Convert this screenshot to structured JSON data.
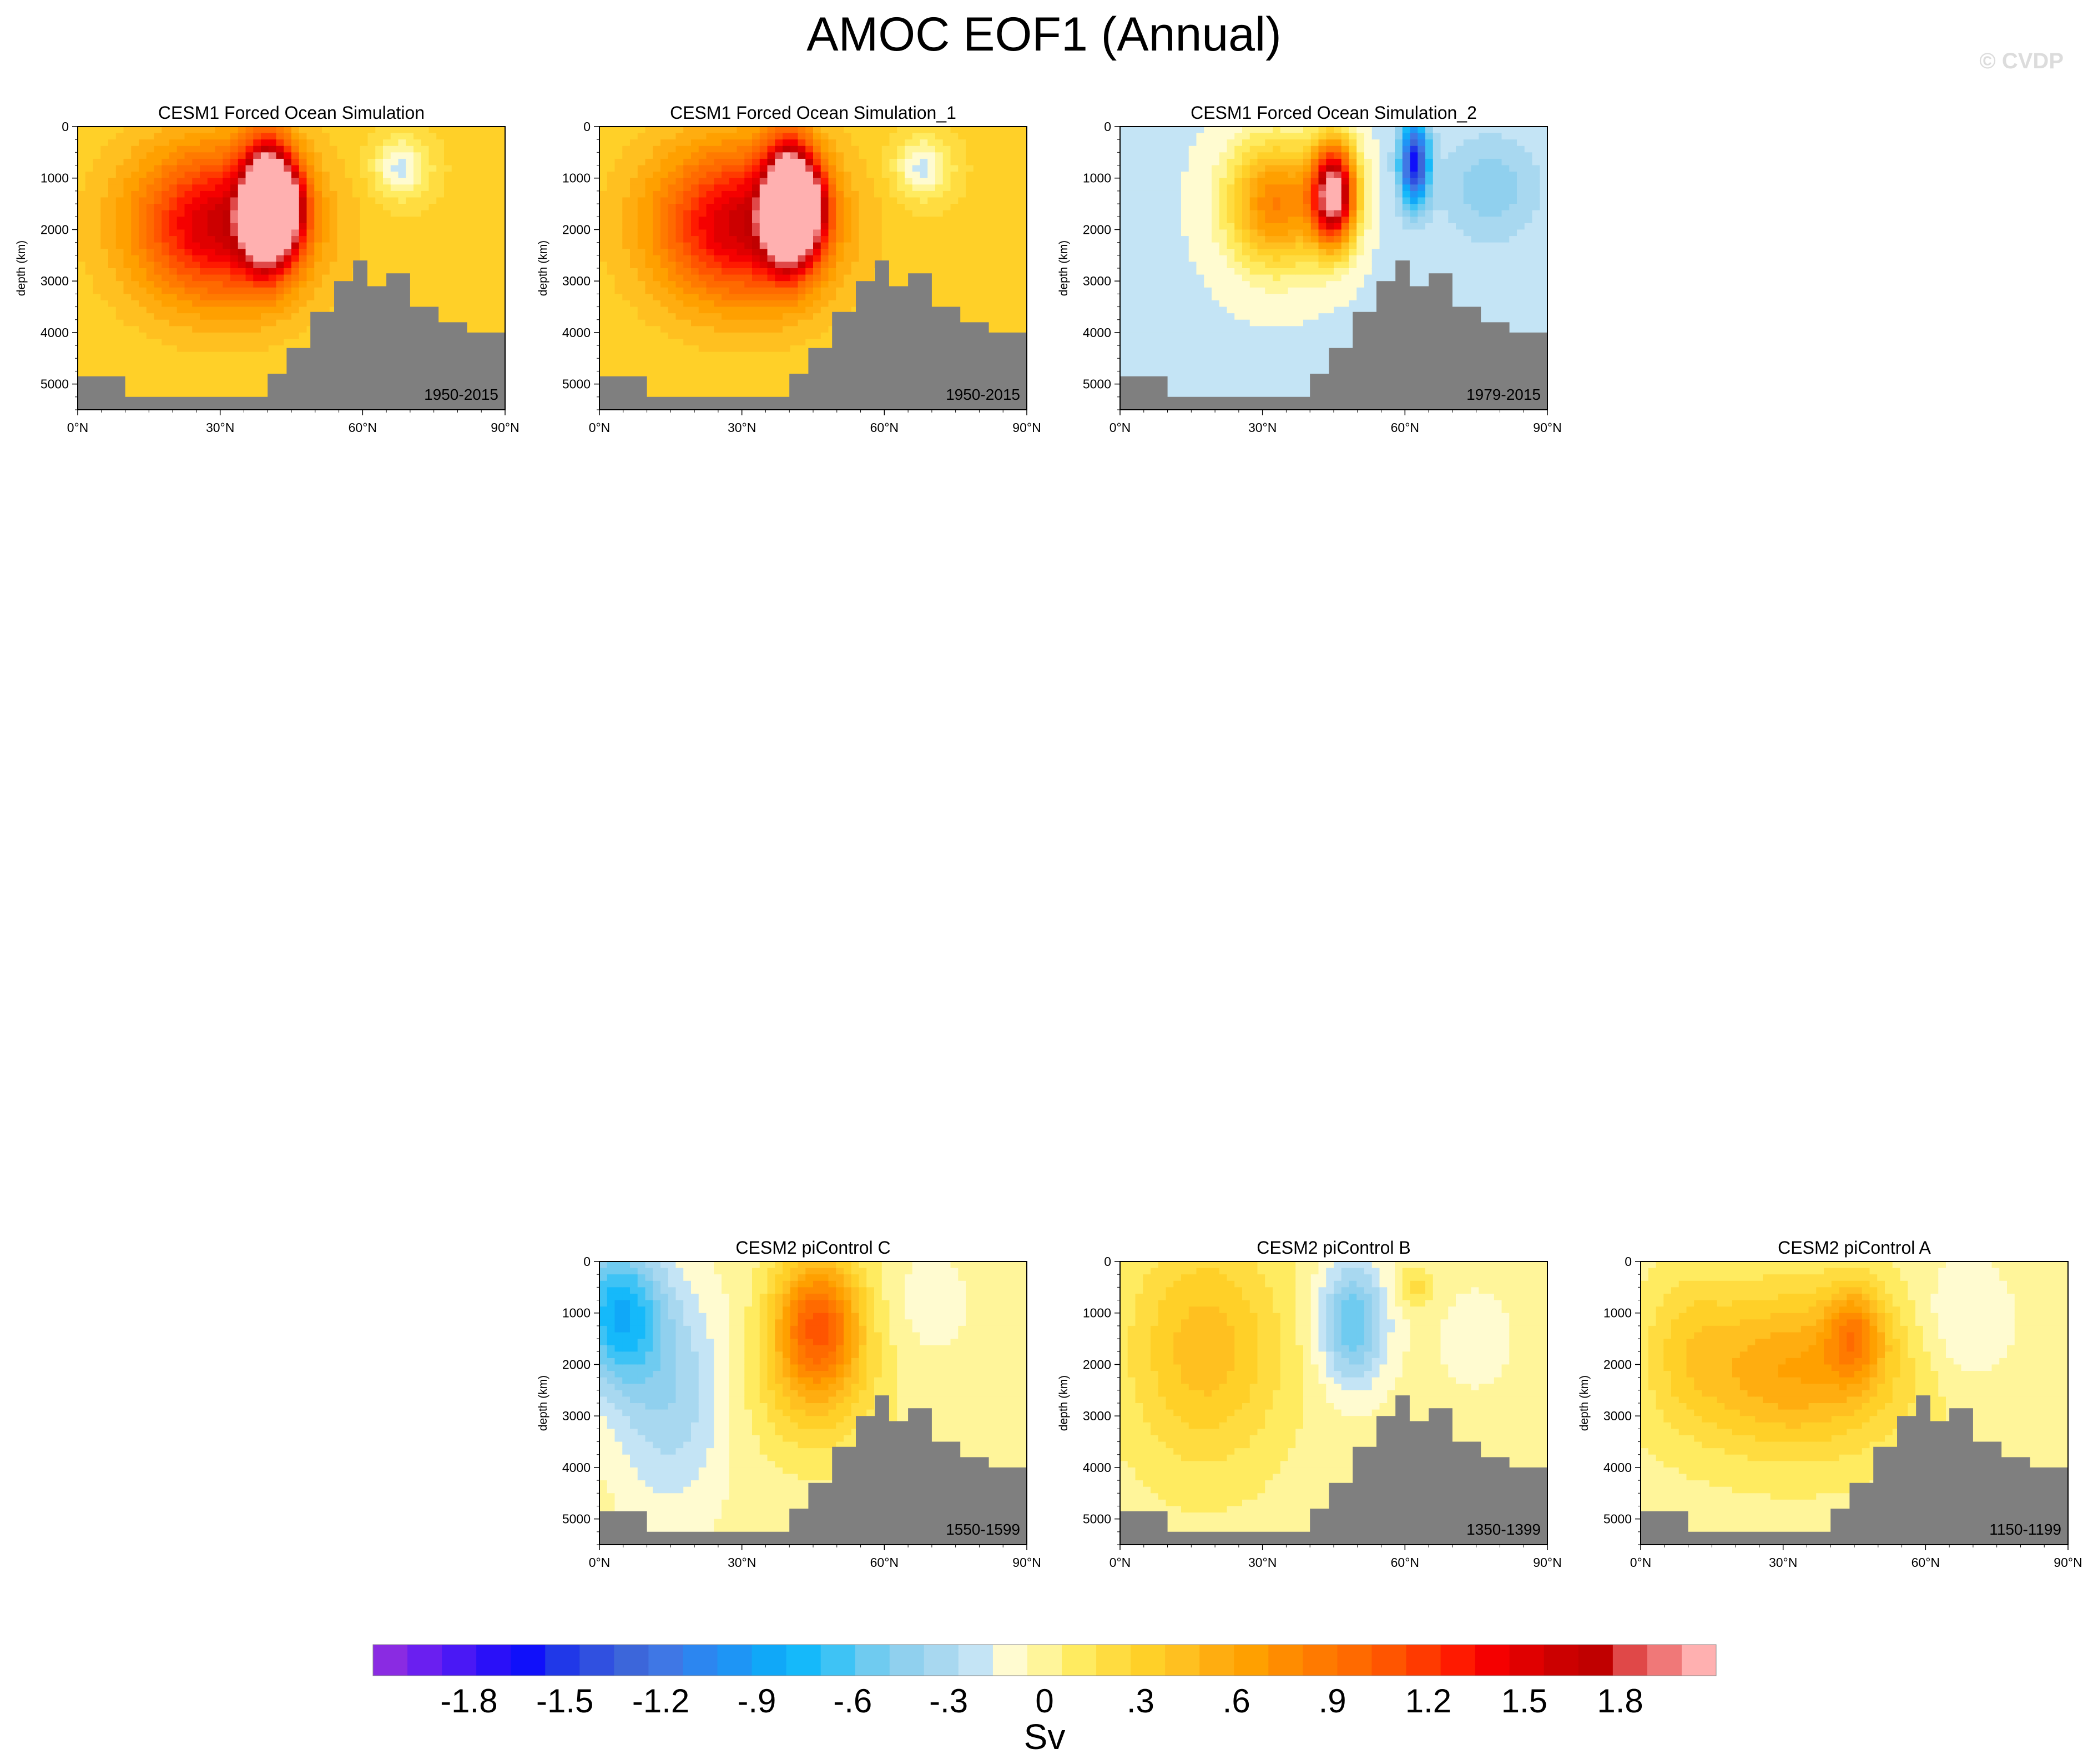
{
  "title": "AMOC EOF1 (Annual)",
  "watermark": "© CVDP",
  "chart_data": {
    "type": "heatmap",
    "title": "AMOC EOF1 (Annual)",
    "ylabel": "depth (km)",
    "yticks": [
      "0",
      "1000",
      "2000",
      "3000",
      "4000",
      "5000"
    ],
    "ylim": [
      0,
      5500
    ],
    "xticks": [
      "0°N",
      "30°N",
      "60°N",
      "90°N"
    ],
    "xlim": [
      0,
      90
    ],
    "colorbar": {
      "unit": "Sv",
      "labels": [
        "-1.8",
        "-1.5",
        "-1.2",
        "-.9",
        "-.6",
        "-.3",
        "0",
        ".3",
        ".6",
        ".9",
        "1.2",
        "1.5",
        "1.8"
      ],
      "range": [
        -2.1,
        2.1
      ],
      "step": 0.1,
      "colors": [
        "#8a2be2",
        "#6a1ff0",
        "#4a18f5",
        "#2a10f8",
        "#1010fa",
        "#2038e8",
        "#3050e0",
        "#3c66da",
        "#3f77e5",
        "#2c86f0",
        "#1e95f5",
        "#10a8f8",
        "#15b9fa",
        "#3ec3f5",
        "#6fcbf0",
        "#90d0ee",
        "#a8d8f0",
        "#c4e4f5",
        "#fffbd0",
        "#fff59a",
        "#ffeb60",
        "#ffdc40",
        "#ffd028",
        "#ffc020",
        "#ffad10",
        "#ffa000",
        "#ff8c00",
        "#ff7a00",
        "#ff6a00",
        "#ff5500",
        "#ff3a00",
        "#ff1a00",
        "#f50000",
        "#e00000",
        "#cc0000",
        "#c00000",
        "#e04848",
        "#f07878",
        "#ffb0b0"
      ]
    },
    "panels": [
      {
        "id": "p1",
        "title": "CESM1 Forced Ocean Simulation",
        "period": "1950-2015",
        "pattern": "forced1",
        "peak": 2.0
      },
      {
        "id": "p2",
        "title": "CESM1 Forced Ocean Simulation_1",
        "period": "1950-2015",
        "pattern": "forced1",
        "peak": 2.0
      },
      {
        "id": "p3",
        "title": "CESM1 Forced Ocean Simulation_2",
        "period": "1979-2015",
        "pattern": "forced2",
        "peak": 1.8
      },
      {
        "id": "p4",
        "title": "CESM2 piControl C",
        "period": "1550-1599",
        "pattern": "pic_c",
        "peak": 1.0
      },
      {
        "id": "p5",
        "title": "CESM2 piControl B",
        "period": "1350-1399",
        "pattern": "pic_b",
        "peak": 0.8
      },
      {
        "id": "p6",
        "title": "CESM2 piControl A",
        "period": "1150-1199",
        "pattern": "pic_a",
        "peak": 1.0
      }
    ]
  }
}
